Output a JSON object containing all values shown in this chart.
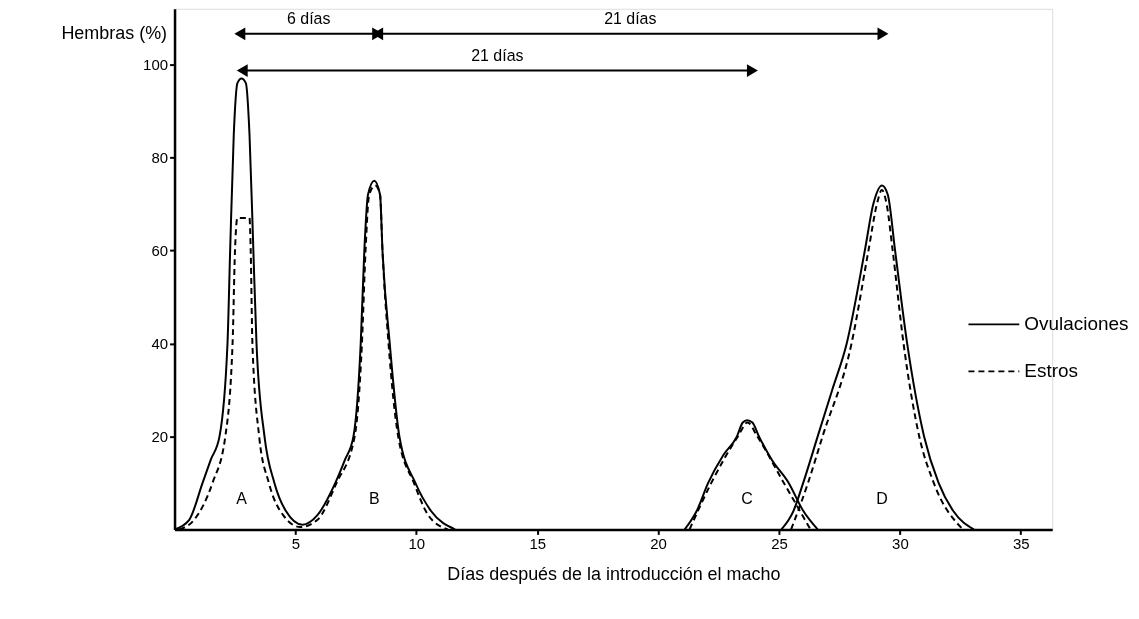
{
  "chart_data": {
    "type": "line",
    "xlabel": "Días después de la introducción el macho",
    "ylabel": "Hembras (%)",
    "xlim": [
      0,
      36.3
    ],
    "xticks": [
      5,
      10,
      15,
      20,
      25,
      30,
      35
    ],
    "ylim": [
      0,
      112
    ],
    "yticks": [
      20,
      40,
      60,
      80,
      100
    ],
    "grid": false,
    "legend": "right",
    "marker": "none",
    "series": [
      {
        "name": "Ovulaciones",
        "color": "#000000",
        "line_style": "solid",
        "x": [
          0,
          0.6,
          1.16,
          1.5,
          1.86,
          2.19,
          2.3,
          2.45,
          2.6,
          2.77,
          2.95,
          3.1,
          3.26,
          3.39,
          3.72,
          4.13,
          4.6,
          5.29,
          5.9,
          6.65,
          7.05,
          7.4,
          7.7,
          7.85,
          8.0,
          8.26,
          8.5,
          8.6,
          8.9,
          9.3,
          9.96,
          10.6,
          11.6
        ],
        "values": [
          0,
          2,
          10,
          15,
          20,
          40,
          60,
          85,
          96,
          97,
          96,
          85,
          60,
          40,
          20,
          10,
          4,
          1,
          3,
          10,
          15,
          20,
          40,
          60,
          72,
          75,
          72,
          60,
          40,
          20,
          10,
          4,
          0
        ]
      },
      {
        "name": "Estros",
        "color": "#000000",
        "line_style": "dashed",
        "x": [
          0.2,
          0.8,
          1.57,
          2.1,
          2.4,
          2.5,
          2.6,
          3.1,
          3.15,
          3.22,
          3.5,
          3.9,
          4.5,
          5.2,
          5.9,
          6.7,
          7.45,
          7.75,
          7.9,
          8.05,
          8.3,
          8.5,
          8.6,
          8.85,
          9.25,
          9.9,
          10.5,
          11.3
        ],
        "values": [
          0,
          2,
          10,
          20,
          40,
          60,
          67,
          67,
          60,
          40,
          20,
          10,
          3,
          0.5,
          2,
          10,
          20,
          40,
          60,
          72,
          74,
          72,
          60,
          40,
          20,
          10,
          3,
          0
        ]
      },
      {
        "color": "#000000",
        "line_style": "solid",
        "x": [
          21.1,
          21.6,
          22.07,
          22.7,
          23.26,
          23.5,
          23.68,
          23.9,
          24.17,
          24.7,
          25.4,
          26.0,
          26.6
        ],
        "values": [
          0,
          4,
          10,
          16,
          20,
          23,
          23.5,
          23,
          20,
          15,
          10,
          4,
          0
        ]
      },
      {
        "color": "#000000",
        "line_style": "dashed",
        "x": [
          21.3,
          22.2,
          23.3,
          23.7,
          24.1,
          25.2,
          26.3
        ],
        "values": [
          0,
          10,
          20,
          23,
          20,
          10,
          0
        ]
      },
      {
        "color": "#000000",
        "line_style": "solid",
        "x": [
          25.1,
          25.6,
          26.0,
          26.6,
          27.2,
          27.8,
          28.55,
          28.9,
          29.26,
          29.5,
          29.8,
          30.3,
          31.0,
          31.6,
          32.2,
          33.06
        ],
        "values": [
          0,
          4,
          10,
          20,
          30,
          40,
          60,
          70,
          74,
          72,
          60,
          40,
          20,
          10,
          4,
          0
        ]
      },
      {
        "color": "#000000",
        "line_style": "dashed",
        "x": [
          25.5,
          26.2,
          26.8,
          28.0,
          28.7,
          29.05,
          29.25,
          29.45,
          29.7,
          30.15,
          30.8,
          31.4,
          32.6
        ],
        "values": [
          0,
          10,
          20,
          40,
          60,
          70,
          73,
          70,
          60,
          40,
          20,
          10,
          0
        ]
      },
      {
        "color": "#000000",
        "line_style": "solid",
        "marker": "triangle",
        "x": [
          2.7,
          8.4
        ],
        "values": [
          106.6,
          106.6
        ]
      },
      {
        "color": "#000000",
        "line_style": "solid",
        "marker": "triangle",
        "x": [
          8.4,
          29.3
        ],
        "values": [
          106.6,
          106.6
        ]
      },
      {
        "color": "#000000",
        "line_style": "solid",
        "marker": "triangle",
        "x": [
          2.8,
          23.9
        ],
        "values": [
          98.7,
          98.7
        ]
      }
    ],
    "annotations": [
      {
        "text": "6 días",
        "x": 5.55,
        "y": 106.6
      },
      {
        "text": "21 días",
        "x": 18.85,
        "y": 106.6
      },
      {
        "text": "21 días",
        "x": 13.35,
        "y": 98.7
      },
      "A",
      "B",
      "C",
      "D"
    ]
  }
}
